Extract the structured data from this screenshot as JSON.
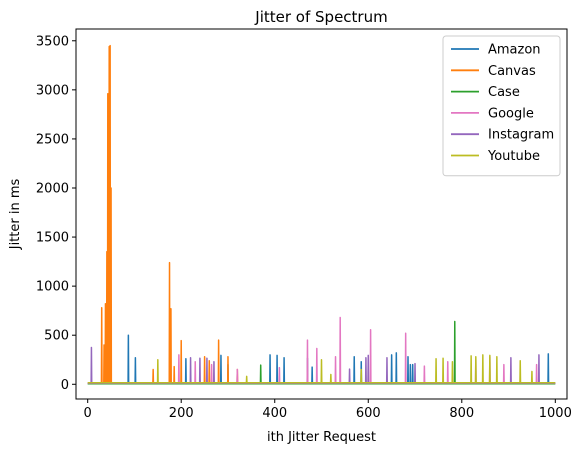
{
  "chart_data": {
    "type": "line",
    "title": "Jitter of Spectrum",
    "xlabel": "ith Jitter Request",
    "ylabel": "Jitter in ms",
    "xlim": [
      -25,
      1025
    ],
    "ylim": [
      -150,
      3620
    ],
    "xticks": [
      0,
      200,
      400,
      600,
      800,
      1000
    ],
    "yticks": [
      0,
      500,
      1000,
      1500,
      2000,
      2500,
      3000,
      3500
    ],
    "grid": false,
    "legend_position": "top-right",
    "series": [
      {
        "name": "Amazon",
        "color": "#1f77b4",
        "baseline": 8,
        "spikes": [
          [
            87,
            500
          ],
          [
            102,
            270
          ],
          [
            210,
            260
          ],
          [
            285,
            295
          ],
          [
            300,
            200
          ],
          [
            390,
            300
          ],
          [
            405,
            295
          ],
          [
            420,
            270
          ],
          [
            470,
            265
          ],
          [
            480,
            175
          ],
          [
            570,
            280
          ],
          [
            585,
            230
          ],
          [
            650,
            300
          ],
          [
            660,
            320
          ],
          [
            685,
            280
          ],
          [
            690,
            200
          ],
          [
            695,
            200
          ],
          [
            985,
            310
          ]
        ]
      },
      {
        "name": "Canvas",
        "color": "#ff7f0e",
        "baseline": 10,
        "spikes": [
          [
            30,
            780
          ],
          [
            35,
            400
          ],
          [
            38,
            820
          ],
          [
            41,
            1350
          ],
          [
            43,
            2960
          ],
          [
            46,
            3440
          ],
          [
            48,
            3450
          ],
          [
            50,
            2000
          ],
          [
            140,
            150
          ],
          [
            175,
            1240
          ],
          [
            178,
            770
          ],
          [
            185,
            180
          ],
          [
            200,
            445
          ],
          [
            250,
            280
          ],
          [
            260,
            240
          ],
          [
            280,
            450
          ],
          [
            300,
            280
          ],
          [
            320,
            150
          ]
        ]
      },
      {
        "name": "Case",
        "color": "#2ca02c",
        "baseline": 5,
        "spikes": [
          [
            370,
            195
          ],
          [
            785,
            640
          ]
        ]
      },
      {
        "name": "Google",
        "color": "#e377c2",
        "baseline": 10,
        "spikes": [
          [
            195,
            300
          ],
          [
            230,
            230
          ],
          [
            265,
            200
          ],
          [
            320,
            150
          ],
          [
            410,
            170
          ],
          [
            470,
            450
          ],
          [
            490,
            365
          ],
          [
            530,
            280
          ],
          [
            540,
            680
          ],
          [
            605,
            555
          ],
          [
            680,
            520
          ],
          [
            720,
            185
          ],
          [
            770,
            230
          ],
          [
            830,
            250
          ],
          [
            860,
            280
          ],
          [
            890,
            200
          ],
          [
            960,
            200
          ]
        ]
      },
      {
        "name": "Instagram",
        "color": "#9467bd",
        "baseline": 10,
        "spikes": [
          [
            8,
            375
          ],
          [
            220,
            270
          ],
          [
            240,
            265
          ],
          [
            255,
            265
          ],
          [
            270,
            230
          ],
          [
            560,
            155
          ],
          [
            595,
            270
          ],
          [
            600,
            295
          ],
          [
            640,
            270
          ],
          [
            700,
            210
          ],
          [
            905,
            270
          ],
          [
            965,
            300
          ]
        ]
      },
      {
        "name": "Youtube",
        "color": "#bcbd22",
        "baseline": 15,
        "spikes": [
          [
            150,
            250
          ],
          [
            340,
            80
          ],
          [
            500,
            250
          ],
          [
            520,
            100
          ],
          [
            585,
            150
          ],
          [
            745,
            260
          ],
          [
            760,
            265
          ],
          [
            780,
            230
          ],
          [
            820,
            290
          ],
          [
            830,
            280
          ],
          [
            845,
            300
          ],
          [
            860,
            295
          ],
          [
            875,
            280
          ],
          [
            925,
            240
          ],
          [
            950,
            130
          ]
        ]
      }
    ]
  }
}
